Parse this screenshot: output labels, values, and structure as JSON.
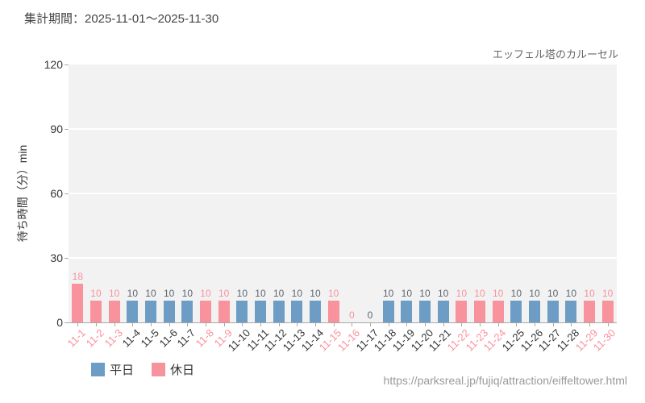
{
  "header": {
    "period_label": "集計期間：2025-11-01～2025-11-30"
  },
  "chart_data": {
    "type": "bar",
    "title": "エッフェル塔のカルーセル",
    "xlabel": "",
    "ylabel": "待ち時間（分）min",
    "ylim": [
      0,
      120
    ],
    "yticks": [
      0,
      30,
      60,
      90,
      120
    ],
    "grid": true,
    "legend_position": "bottom-left",
    "categories": [
      "11-1",
      "11-2",
      "11-3",
      "11-4",
      "11-5",
      "11-6",
      "11-7",
      "11-8",
      "11-9",
      "11-10",
      "11-11",
      "11-12",
      "11-13",
      "11-14",
      "11-15",
      "11-16",
      "11-17",
      "11-18",
      "11-19",
      "11-20",
      "11-21",
      "11-22",
      "11-23",
      "11-24",
      "11-25",
      "11-26",
      "11-27",
      "11-28",
      "11-29",
      "11-30"
    ],
    "values": [
      18,
      10,
      10,
      10,
      10,
      10,
      10,
      10,
      10,
      10,
      10,
      10,
      10,
      10,
      10,
      0,
      0,
      10,
      10,
      10,
      10,
      10,
      10,
      10,
      10,
      10,
      10,
      10,
      10,
      10
    ],
    "day_types": [
      "holiday",
      "holiday",
      "holiday",
      "weekday",
      "weekday",
      "weekday",
      "weekday",
      "holiday",
      "holiday",
      "weekday",
      "weekday",
      "weekday",
      "weekday",
      "weekday",
      "holiday",
      "holiday",
      "weekday",
      "weekday",
      "weekday",
      "weekday",
      "weekday",
      "holiday",
      "holiday",
      "holiday",
      "weekday",
      "weekday",
      "weekday",
      "weekday",
      "holiday",
      "holiday"
    ],
    "legend": [
      {
        "label": "平日",
        "type": "weekday"
      },
      {
        "label": "休日",
        "type": "holiday"
      }
    ]
  },
  "colors": {
    "weekday": "#6d9dc5",
    "holiday": "#f8929c",
    "weekday_value_label": "#5b6670",
    "holiday_value_label": "#f8929c",
    "weekday_tick_label": "#333333",
    "holiday_tick_label": "#f8929c"
  },
  "footer": {
    "url": "https://parksreal.jp/fujiq/attraction/eiffeltower.html"
  }
}
